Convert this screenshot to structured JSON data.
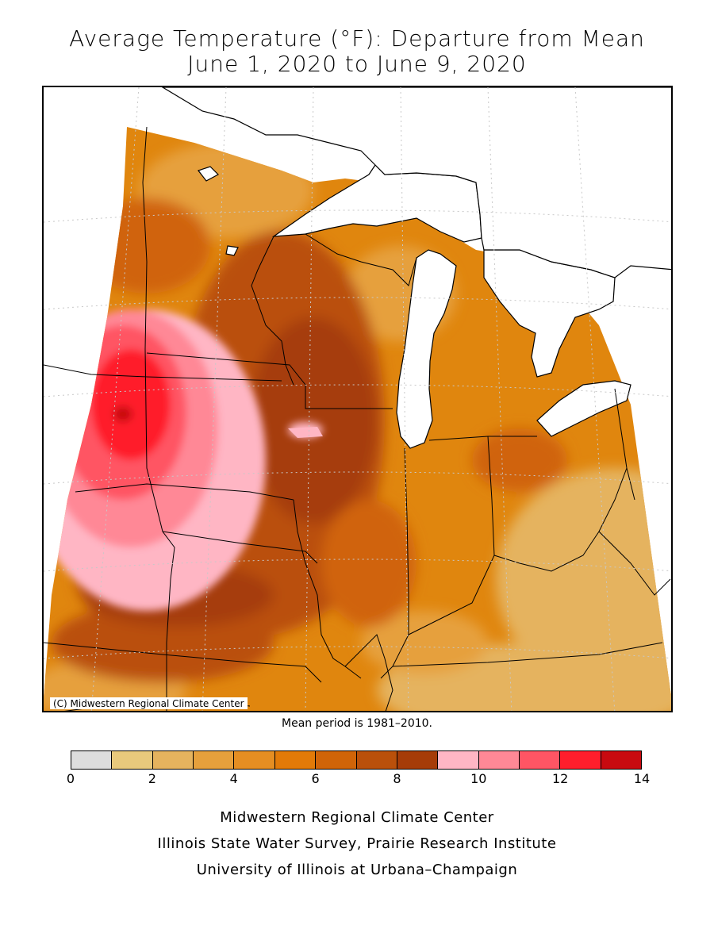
{
  "title": {
    "line1": "Average Temperature (°F): Departure from Mean",
    "line2": "June 1, 2020 to June 9, 2020"
  },
  "map": {
    "credit": "(C) Midwestern Regional Climate Center",
    "region": "Upper Midwest / Great Lakes",
    "hotspot_max_departure_f": 14,
    "colors": {
      "land_base": "#E0860E",
      "water": "#FFFFFF",
      "boundary": "#000000",
      "grid": "#C8C8C8"
    }
  },
  "mean_note": "Mean period is 1981–2010.",
  "legend": {
    "bins": [
      {
        "color": "#DDDDDD"
      },
      {
        "color": "#E8C97C"
      },
      {
        "color": "#E5B35E"
      },
      {
        "color": "#E6A03C"
      },
      {
        "color": "#E58E22"
      },
      {
        "color": "#E27A08"
      },
      {
        "color": "#D06408"
      },
      {
        "color": "#BA500A"
      },
      {
        "color": "#A63C08"
      },
      {
        "color": "#FFB6C4"
      },
      {
        "color": "#FF8896"
      },
      {
        "color": "#FF5564"
      },
      {
        "color": "#FF1E2C"
      },
      {
        "color": "#C80A10"
      }
    ],
    "ticks": [
      "0",
      "2",
      "4",
      "6",
      "8",
      "10",
      "12",
      "14"
    ]
  },
  "footer": {
    "line1": "Midwestern Regional Climate Center",
    "line2": "Illinois State Water Survey, Prairie Research Institute",
    "line3": "University of Illinois at Urbana–Champaign"
  }
}
